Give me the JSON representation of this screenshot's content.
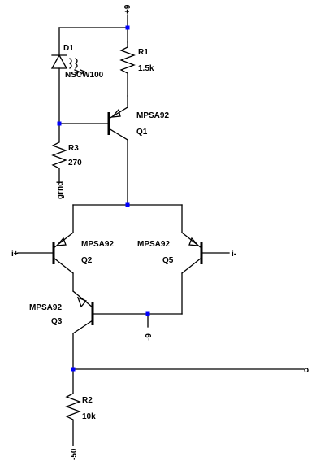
{
  "schematic": {
    "components": {
      "D1": {
        "ref": "D1",
        "value": "NSCW100"
      },
      "R1": {
        "ref": "R1",
        "value": "1.5k"
      },
      "R2": {
        "ref": "R2",
        "value": "10k"
      },
      "R3": {
        "ref": "R3",
        "value": "270"
      },
      "Q1": {
        "ref": "Q1",
        "model": "MPSA92"
      },
      "Q2": {
        "ref": "Q2",
        "model": "MPSA92"
      },
      "Q3": {
        "ref": "Q3",
        "model": "MPSA92"
      },
      "Q5": {
        "ref": "Q5",
        "model": "MPSA92"
      }
    },
    "nets": {
      "vpos": "+9",
      "vneg9": "-9",
      "vneg50": "-50",
      "gnd": "grnd",
      "in_plus": "i+",
      "in_minus": "i-",
      "out": "o"
    }
  }
}
